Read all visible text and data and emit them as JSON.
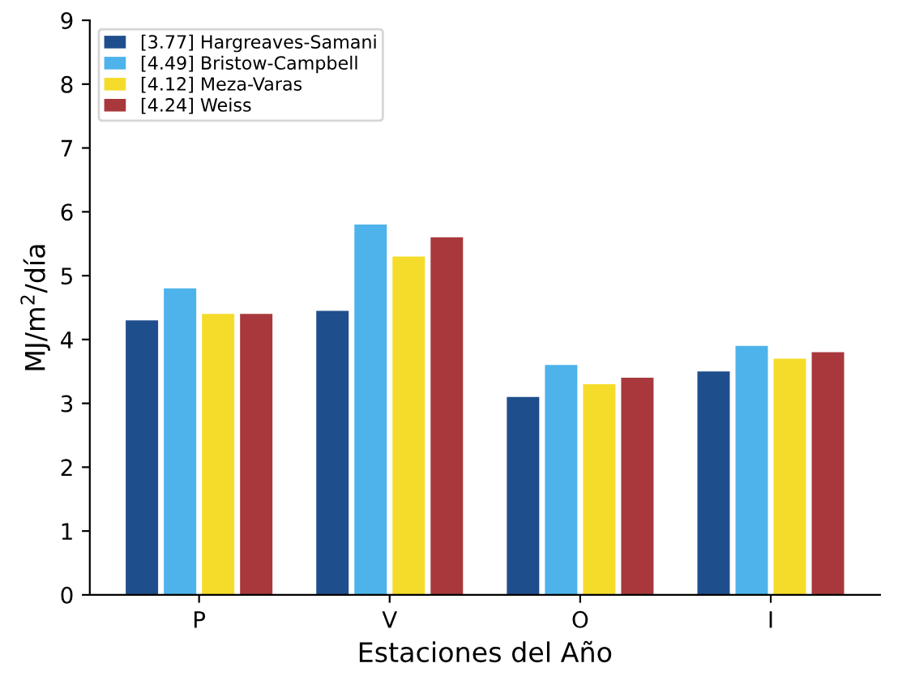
{
  "chart_data": {
    "type": "bar",
    "xlabel": "Estaciones del Año",
    "ylabel": "MJ/m$^{2}$/día",
    "categories": [
      "P",
      "V",
      "O",
      "I"
    ],
    "series": [
      {
        "name": "[3.77] Hargreaves-Samani",
        "color": "#1f4e8c",
        "values": [
          4.3,
          4.45,
          3.1,
          3.5
        ]
      },
      {
        "name": "[4.49] Bristow-Campbell",
        "color": "#4db3ea",
        "values": [
          4.8,
          5.8,
          3.6,
          3.9
        ]
      },
      {
        "name": "[4.12] Meza-Varas",
        "color": "#f5dc2a",
        "values": [
          4.4,
          5.3,
          3.3,
          3.7
        ]
      },
      {
        "name": "[4.24] Weiss",
        "color": "#a8383c",
        "values": [
          4.4,
          5.6,
          3.4,
          3.8
        ]
      }
    ],
    "ylim": [
      0,
      9
    ],
    "yticks": [
      0,
      1,
      2,
      3,
      4,
      5,
      6,
      7,
      8,
      9
    ],
    "grid": false,
    "legend": "top left"
  }
}
